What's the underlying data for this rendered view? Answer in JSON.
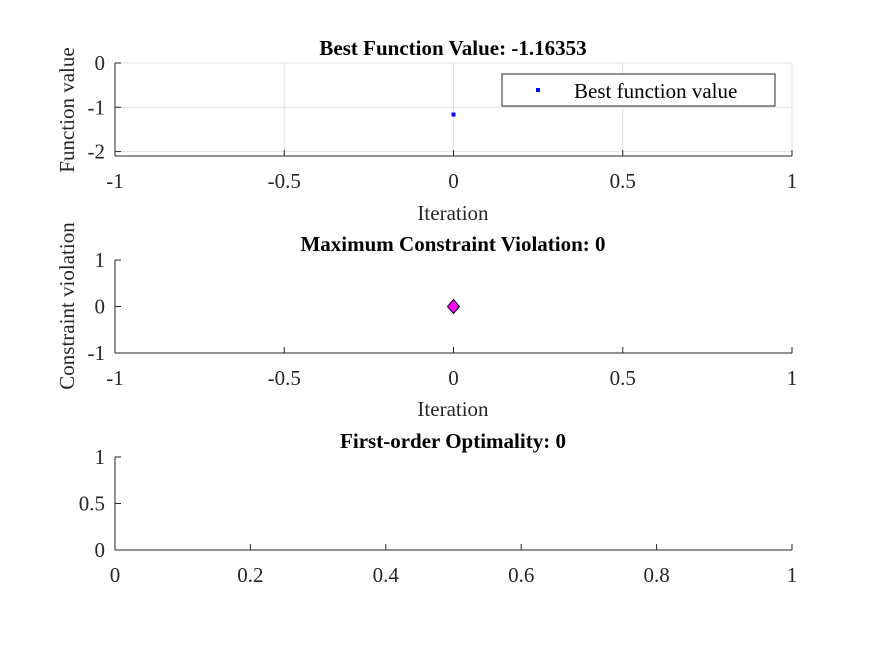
{
  "colors": {
    "axis": "#262626",
    "grid": "#dfdfdf",
    "best_marker": "#0000ff",
    "violation_fill": "#ff00ff",
    "violation_edge": "#000000"
  },
  "chart_data": [
    {
      "type": "scatter",
      "title": "Best Function Value: -1.16353",
      "xlabel": "Iteration",
      "ylabel": "Function value",
      "xlim": [
        -1,
        1
      ],
      "ylim": [
        -2.1,
        0
      ],
      "xticks": [
        -1,
        -0.5,
        0,
        0.5,
        1
      ],
      "xtick_labels": [
        "-1",
        "-0.5",
        "0",
        "0.5",
        "1"
      ],
      "yticks": [
        -2,
        -1,
        0
      ],
      "ytick_labels": [
        "-2",
        "-1",
        "0"
      ],
      "grid": true,
      "legend_position": "top-right",
      "series": [
        {
          "name": "Best function value",
          "marker": "point",
          "color": "#0000ff",
          "x": [
            0
          ],
          "y": [
            -1.16353
          ]
        }
      ]
    },
    {
      "type": "scatter",
      "title": "Maximum Constraint Violation: 0",
      "xlabel": "Iteration",
      "ylabel": "Constraint violation",
      "xlim": [
        -1,
        1
      ],
      "ylim": [
        -1,
        1
      ],
      "xticks": [
        -1,
        -0.5,
        0,
        0.5,
        1
      ],
      "xtick_labels": [
        "-1",
        "-0.5",
        "0",
        "0.5",
        "1"
      ],
      "yticks": [
        -1,
        0,
        1
      ],
      "ytick_labels": [
        "-1",
        "0",
        "1"
      ],
      "grid": false,
      "series": [
        {
          "marker": "diamond",
          "color": "#ff00ff",
          "x": [
            0
          ],
          "y": [
            0
          ]
        }
      ]
    },
    {
      "type": "scatter",
      "title": "First-order Optimality: 0",
      "xlabel": "",
      "ylabel": "",
      "xlim": [
        0,
        1
      ],
      "ylim": [
        0,
        1
      ],
      "xticks": [
        0,
        0.2,
        0.4,
        0.6,
        0.8,
        1
      ],
      "xtick_labels": [
        "0",
        "0.2",
        "0.4",
        "0.6",
        "0.8",
        "1"
      ],
      "yticks": [
        0,
        0.5,
        1
      ],
      "ytick_labels": [
        "0",
        "0.5",
        "1"
      ],
      "grid": false,
      "series": []
    }
  ]
}
